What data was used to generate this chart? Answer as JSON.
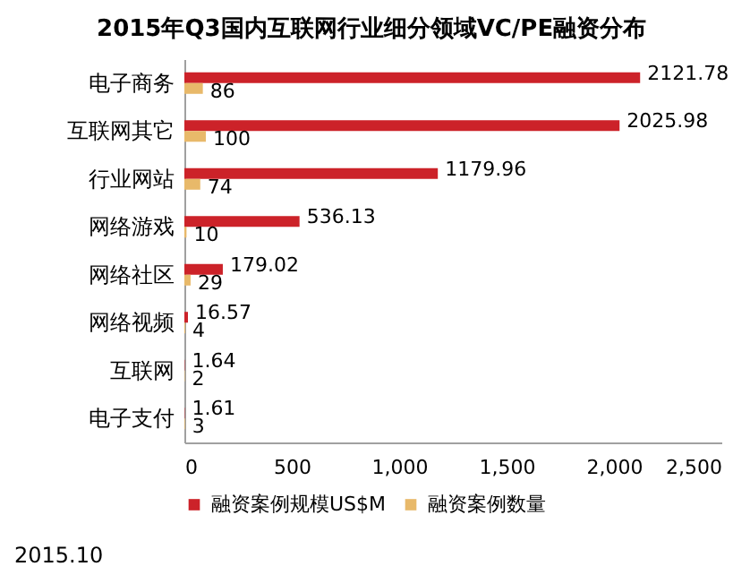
{
  "chart_data": {
    "type": "bar",
    "orientation": "horizontal",
    "title": "2015年Q3国内互联网行业细分领域VC/PE融资分布",
    "categories": [
      "电子商务",
      "互联网其它",
      "行业网站",
      "网络游戏",
      "网络社区",
      "网络视频",
      "互联网",
      "电子支付"
    ],
    "series": [
      {
        "name": "融资案例规模US$M",
        "color": "#cc2229",
        "values": [
          2121.78,
          2025.98,
          1179.96,
          536.13,
          179.02,
          16.57,
          1.64,
          1.61
        ]
      },
      {
        "name": "融资案例数量",
        "color": "#e8b96a",
        "values": [
          86,
          100,
          74,
          10,
          29,
          4,
          2,
          3
        ]
      }
    ],
    "xlim": [
      0,
      2500
    ],
    "xticks": [
      0,
      500,
      {
        "value": 1000,
        "label": "1,000"
      },
      {
        "value": 1500,
        "label": "1,500"
      },
      {
        "value": 2000,
        "label": "2,000"
      },
      {
        "value": 2500,
        "label": "2,500"
      }
    ],
    "data_labels": true,
    "legend": "bottom",
    "grid": false,
    "annotations": [
      "2015.10"
    ]
  }
}
